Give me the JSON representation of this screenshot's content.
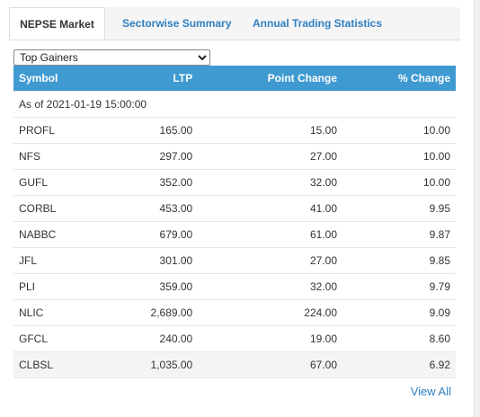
{
  "tabs": [
    {
      "label": "NEPSE Market"
    },
    {
      "label": "Sectorwise Summary"
    },
    {
      "label": "Annual Trading Statistics"
    }
  ],
  "selector": {
    "selected": "Top Gainers"
  },
  "table": {
    "headers": [
      "Symbol",
      "LTP",
      "Point Change",
      "% Change"
    ],
    "as_of": "As of 2021-01-19 15:00:00",
    "rows": [
      {
        "symbol": "PROFL",
        "ltp": "165.00",
        "point": "15.00",
        "pct": "10.00"
      },
      {
        "symbol": "NFS",
        "ltp": "297.00",
        "point": "27.00",
        "pct": "10.00"
      },
      {
        "symbol": "GUFL",
        "ltp": "352.00",
        "point": "32.00",
        "pct": "10.00"
      },
      {
        "symbol": "CORBL",
        "ltp": "453.00",
        "point": "41.00",
        "pct": "9.95"
      },
      {
        "symbol": "NABBC",
        "ltp": "679.00",
        "point": "61.00",
        "pct": "9.87"
      },
      {
        "symbol": "JFL",
        "ltp": "301.00",
        "point": "27.00",
        "pct": "9.85"
      },
      {
        "symbol": "PLI",
        "ltp": "359.00",
        "point": "32.00",
        "pct": "9.79"
      },
      {
        "symbol": "NLIC",
        "ltp": "2,689.00",
        "point": "224.00",
        "pct": "9.09"
      },
      {
        "symbol": "GFCL",
        "ltp": "240.00",
        "point": "19.00",
        "pct": "8.60"
      },
      {
        "symbol": "CLBSL",
        "ltp": "1,035.00",
        "point": "67.00",
        "pct": "6.92"
      }
    ]
  },
  "view_all": "View All",
  "colors": {
    "header_bg": "#3f9ad1",
    "link": "#2f7fc1"
  }
}
